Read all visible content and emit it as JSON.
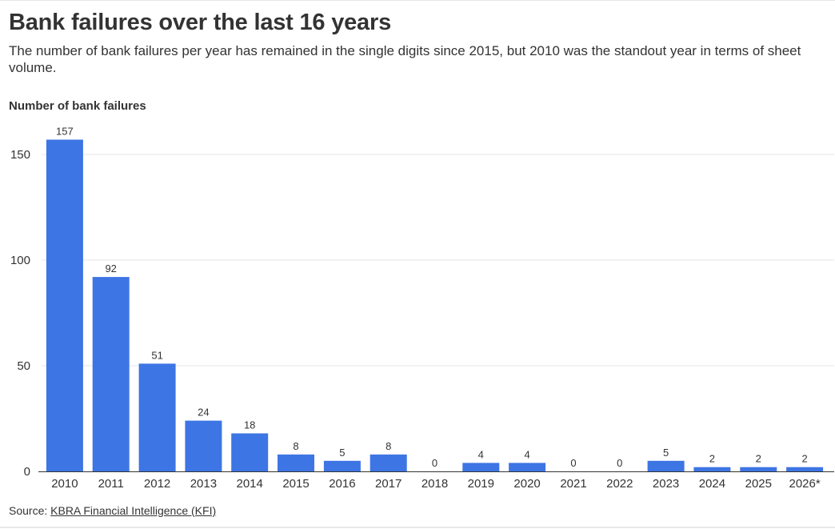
{
  "header": {
    "title": "Bank failures over the last 16 years",
    "subtitle": "The number of bank failures per year has remained in the single digits since 2015, but 2010 was the standout year in terms of sheet volume."
  },
  "footer": {
    "source_prefix": "Source: ",
    "source_link": "KBRA Financial Intelligence (KFI)"
  },
  "colors": {
    "bar": "#3d75e4",
    "grid": "#e6e6e6",
    "axis": "#333333",
    "text": "#333333"
  },
  "chart_data": {
    "type": "bar",
    "title": "Bank failures over the last 16 years",
    "subtitle": "The number of bank failures per year has remained in the single digits since 2015, but 2010 was the standout year in terms of sheet volume.",
    "xlabel": "",
    "ylabel": "Number of bank failures",
    "categories": [
      "2010",
      "2011",
      "2012",
      "2013",
      "2014",
      "2015",
      "2016",
      "2017",
      "2018",
      "2019",
      "2020",
      "2021",
      "2022",
      "2023",
      "2024",
      "2025",
      "2026*"
    ],
    "series": [
      {
        "values": [
          157,
          92,
          51,
          24,
          18,
          8,
          5,
          8,
          0,
          4,
          4,
          0,
          0,
          5,
          2,
          2,
          2
        ]
      }
    ],
    "ylim": [
      0,
      160
    ],
    "yticks": [
      0,
      50,
      100,
      150
    ],
    "grid": true,
    "legend": "none",
    "data_labels": true
  }
}
